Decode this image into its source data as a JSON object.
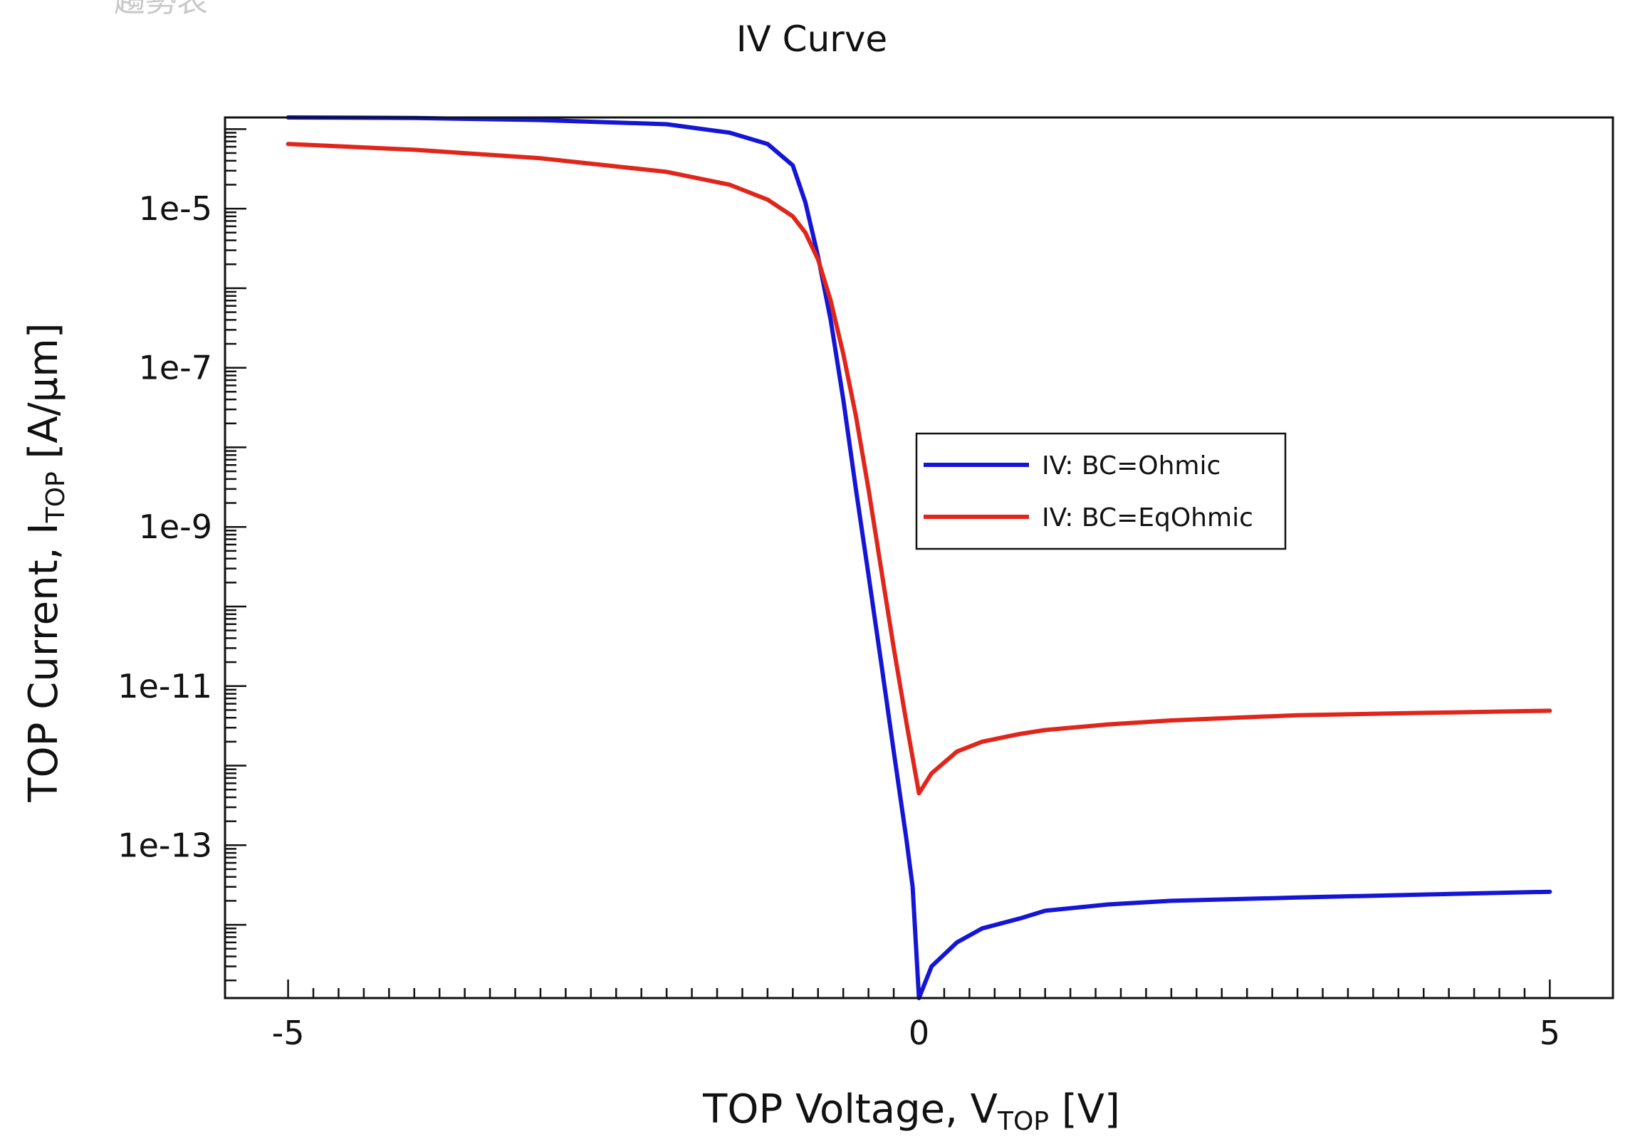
{
  "top_fragment": "趨勢表",
  "chart_data": {
    "type": "line",
    "title": "IV Curve",
    "xlabel": {
      "main": "TOP Voltage, V",
      "sub": "TOP",
      "unit": " [V]"
    },
    "ylabel": {
      "main": "TOP Current, I",
      "sub": "TOP",
      "unit": " [A/µm]"
    },
    "xscale": "linear",
    "yscale": "log",
    "xlim": [
      -5.5,
      5.5
    ],
    "ylim": [
      1.2e-15,
      0.00014
    ],
    "x_ticks": [
      -5,
      0,
      5
    ],
    "x_tick_labels": [
      "-5",
      "0",
      "5"
    ],
    "y_ticks": [
      1e-05,
      1e-07,
      1e-09,
      1e-11,
      1e-13
    ],
    "y_tick_labels": [
      "1e-5",
      "1e-7",
      "1e-9",
      "1e-11",
      "1e-13"
    ],
    "grid": false,
    "legend_position": "center-right",
    "series": [
      {
        "name": "IV: BC=Ohmic",
        "color": "#1515d6",
        "points": [
          [
            -5,
            0.00014
          ],
          [
            -4,
            0.000138
          ],
          [
            -3,
            0.00013
          ],
          [
            -2,
            0.000115
          ],
          [
            -1.5,
            9e-05
          ],
          [
            -1.2,
            6.5e-05
          ],
          [
            -1,
            3.5e-05
          ],
          [
            -0.9,
            1.2e-05
          ],
          [
            -0.8,
            2.5e-06
          ],
          [
            -0.7,
            4e-07
          ],
          [
            -0.6,
            4e-08
          ],
          [
            -0.5,
            3e-09
          ],
          [
            -0.4,
            2.5e-10
          ],
          [
            -0.3,
            2e-11
          ],
          [
            -0.2,
            1.5e-12
          ],
          [
            -0.1,
            1.2e-13
          ],
          [
            -0.05,
            3e-14
          ],
          [
            0,
            1.2e-15
          ],
          [
            0.1,
            3e-15
          ],
          [
            0.3,
            6e-15
          ],
          [
            0.5,
            9e-15
          ],
          [
            0.8,
            1.2e-14
          ],
          [
            1,
            1.5e-14
          ],
          [
            1.5,
            1.8e-14
          ],
          [
            2,
            2e-14
          ],
          [
            3,
            2.2e-14
          ],
          [
            4,
            2.4e-14
          ],
          [
            5,
            2.6e-14
          ]
        ]
      },
      {
        "name": "IV: BC=EqOhmic",
        "color": "#e0261b",
        "points": [
          [
            -5,
            6.5e-05
          ],
          [
            -4,
            5.5e-05
          ],
          [
            -3,
            4.3e-05
          ],
          [
            -2,
            2.9e-05
          ],
          [
            -1.5,
            2e-05
          ],
          [
            -1.2,
            1.3e-05
          ],
          [
            -1,
            8e-06
          ],
          [
            -0.9,
            5e-06
          ],
          [
            -0.8,
            2.3e-06
          ],
          [
            -0.7,
            7e-07
          ],
          [
            -0.6,
            1.5e-07
          ],
          [
            -0.5,
            2.5e-08
          ],
          [
            -0.4,
            3e-09
          ],
          [
            -0.3,
            3e-10
          ],
          [
            -0.2,
            3e-11
          ],
          [
            -0.1,
            3.5e-12
          ],
          [
            0,
            4.5e-13
          ],
          [
            0.1,
            8e-13
          ],
          [
            0.3,
            1.5e-12
          ],
          [
            0.5,
            2e-12
          ],
          [
            0.8,
            2.5e-12
          ],
          [
            1,
            2.8e-12
          ],
          [
            1.5,
            3.3e-12
          ],
          [
            2,
            3.7e-12
          ],
          [
            2.5,
            4e-12
          ],
          [
            3,
            4.3e-12
          ],
          [
            4,
            4.6e-12
          ],
          [
            5,
            4.9e-12
          ]
        ]
      }
    ]
  }
}
